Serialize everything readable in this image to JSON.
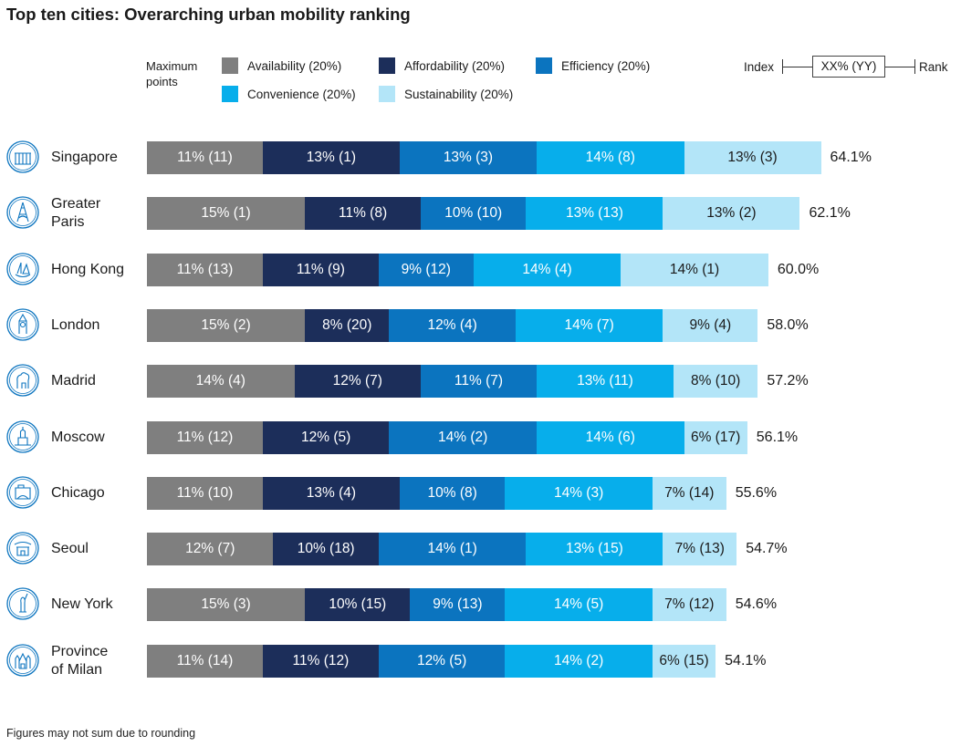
{
  "title": "Top ten cities: Overarching urban mobility ranking",
  "footnote": "Figures may not sum due to rounding",
  "legend": {
    "max_points_label": "Maximum points",
    "items": [
      {
        "label": "Availability (20%)",
        "color": "#7f7f7f"
      },
      {
        "label": "Affordability (20%)",
        "color": "#1c2e5a"
      },
      {
        "label": "Efficiency (20%)",
        "color": "#0b74bf"
      },
      {
        "label": "Convenience (20%)",
        "color": "#07aeeb"
      },
      {
        "label": "Sustainability (20%)",
        "color": "#b3e5f8"
      }
    ],
    "key": {
      "index": "Index",
      "box": "XX% (YY)",
      "rank": "Rank"
    }
  },
  "chart_data": {
    "type": "bar",
    "orientation": "horizontal",
    "stacked": true,
    "title": "Top ten cities: Overarching urban mobility ranking",
    "series_names": [
      "Availability (20%)",
      "Affordability (20%)",
      "Efficiency (20%)",
      "Convenience (20%)",
      "Sustainability (20%)"
    ],
    "colors": [
      "#7f7f7f",
      "#1c2e5a",
      "#0b74bf",
      "#07aeeb",
      "#b3e5f8"
    ],
    "rows": [
      {
        "city": "Singapore",
        "icon": "singapore-icon",
        "values": [
          11,
          13,
          13,
          14,
          13
        ],
        "labels": [
          "11% (11)",
          "13% (1)",
          "13% (3)",
          "14% (8)",
          "13% (3)"
        ],
        "total": "64.1%"
      },
      {
        "city": "Greater Paris",
        "icon": "eiffel-tower-icon",
        "values": [
          15,
          11,
          10,
          13,
          13
        ],
        "labels": [
          "15% (1)",
          "11% (8)",
          "10% (10)",
          "13% (13)",
          "13% (2)"
        ],
        "total": "62.1%"
      },
      {
        "city": "Hong Kong",
        "icon": "junk-boat-icon",
        "values": [
          11,
          11,
          9,
          14,
          14
        ],
        "labels": [
          "11% (13)",
          "11% (9)",
          "9% (12)",
          "14% (4)",
          "14% (1)"
        ],
        "total": "60.0%"
      },
      {
        "city": "London",
        "icon": "big-ben-icon",
        "values": [
          15,
          8,
          12,
          14,
          9
        ],
        "labels": [
          "15% (2)",
          "8% (20)",
          "12% (4)",
          "14% (7)",
          "9% (4)"
        ],
        "total": "58.0%"
      },
      {
        "city": "Madrid",
        "icon": "bear-tree-icon",
        "values": [
          14,
          12,
          11,
          13,
          8
        ],
        "labels": [
          "14% (4)",
          "12% (7)",
          "11% (7)",
          "13% (11)",
          "8% (10)"
        ],
        "total": "57.2%"
      },
      {
        "city": "Moscow",
        "icon": "kremlin-tower-icon",
        "values": [
          11,
          12,
          14,
          14,
          6
        ],
        "labels": [
          "11% (12)",
          "12% (5)",
          "14% (2)",
          "14% (6)",
          "6% (17)"
        ],
        "total": "56.1%"
      },
      {
        "city": "Chicago",
        "icon": "chicago-bean-icon",
        "values": [
          11,
          13,
          10,
          14,
          7
        ],
        "labels": [
          "11% (10)",
          "13% (4)",
          "10% (8)",
          "14% (3)",
          "7% (14)"
        ],
        "total": "55.6%"
      },
      {
        "city": "Seoul",
        "icon": "gate-pagoda-icon",
        "values": [
          12,
          10,
          14,
          13,
          7
        ],
        "labels": [
          "12% (7)",
          "10% (18)",
          "14% (1)",
          "13% (15)",
          "7% (13)"
        ],
        "total": "54.7%"
      },
      {
        "city": "New York",
        "icon": "statue-of-liberty-icon",
        "values": [
          15,
          10,
          9,
          14,
          7
        ],
        "labels": [
          "15% (3)",
          "10% (15)",
          "9% (13)",
          "14% (5)",
          "7% (12)"
        ],
        "total": "54.6%"
      },
      {
        "city": "Province of Milan",
        "icon": "milan-cathedral-icon",
        "values": [
          11,
          11,
          12,
          14,
          6
        ],
        "labels": [
          "11% (14)",
          "11% (12)",
          "12% (5)",
          "14% (2)",
          "6% (15)"
        ],
        "total": "54.1%"
      }
    ]
  }
}
